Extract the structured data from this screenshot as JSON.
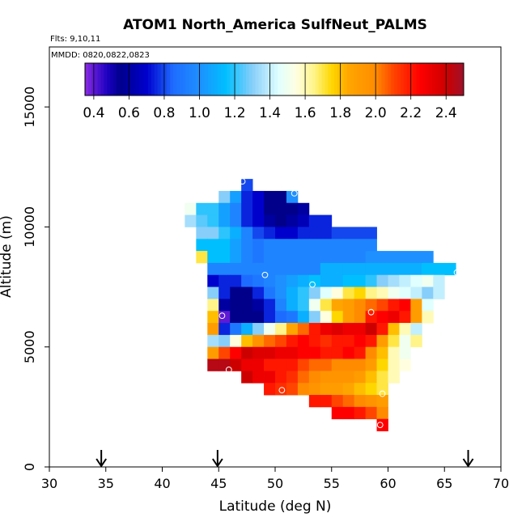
{
  "chart_data": {
    "type": "heatmap",
    "title": "ATOM1 North_America SulfNeut_PALMS",
    "flights_note": "Flts: 9,10,11",
    "dates_note": "MMDD: 0820,0822,0823",
    "xlabel": "Latitude (deg N)",
    "ylabel": "Altitude (m)",
    "xlim": [
      30,
      70
    ],
    "ylim": [
      0,
      17500
    ],
    "x_ticks": [
      "30",
      "35",
      "40",
      "45",
      "50",
      "55",
      "60",
      "65",
      "70"
    ],
    "y_ticks": [
      "0",
      "5000",
      "10000",
      "15000"
    ],
    "colorbar": {
      "range": [
        0.35,
        2.5
      ],
      "tick_labels": [
        "0.4",
        "0.6",
        "0.8",
        "1.0",
        "1.2",
        "1.4",
        "1.6",
        "1.8",
        "2.0",
        "2.2",
        "2.4"
      ],
      "stops": [
        [
          0.35,
          "#8a2be2"
        ],
        [
          0.48,
          "#1a00c0"
        ],
        [
          0.55,
          "#00008b"
        ],
        [
          0.7,
          "#0000cd"
        ],
        [
          0.85,
          "#1e6cff"
        ],
        [
          1.0,
          "#1e90ff"
        ],
        [
          1.15,
          "#00bfff"
        ],
        [
          1.3,
          "#87cefa"
        ],
        [
          1.45,
          "#e0ffff"
        ],
        [
          1.55,
          "#ffffe0"
        ],
        [
          1.65,
          "#fff48a"
        ],
        [
          1.75,
          "#ffd700"
        ],
        [
          1.85,
          "#ffa500"
        ],
        [
          2.0,
          "#ff8c00"
        ],
        [
          2.1,
          "#ff4500"
        ],
        [
          2.25,
          "#ff0000"
        ],
        [
          2.4,
          "#cd0000"
        ],
        [
          2.5,
          "#a0102a"
        ]
      ]
    },
    "cell_size": {
      "lat": 1.0,
      "alt_m": 500
    },
    "rows": [
      {
        "alt": 11750,
        "start": 47,
        "values": [
          0.8
        ]
      },
      {
        "alt": 11250,
        "start": 45,
        "values": [
          1.3,
          1.05,
          0.75,
          0.7,
          0.55,
          0.55,
          1.0
        ]
      },
      {
        "alt": 10750,
        "start": 42,
        "values": [
          1.5,
          1.2,
          1.2,
          1.05,
          0.95,
          0.75,
          0.7,
          0.55,
          0.55,
          0.55,
          0.6
        ]
      },
      {
        "alt": 10250,
        "start": 42,
        "values": [
          1.35,
          1.25,
          1.2,
          1.05,
          0.95,
          0.75,
          0.7,
          0.6,
          0.55,
          0.6,
          0.65,
          0.75,
          0.75
        ]
      },
      {
        "alt": 9750,
        "start": 43,
        "values": [
          1.3,
          1.3,
          1.2,
          1.1,
          0.95,
          0.8,
          0.75,
          0.7,
          0.7,
          0.75,
          0.75,
          0.75,
          0.8,
          0.8,
          0.8,
          0.8
        ]
      },
      {
        "alt": 9250,
        "start": 43,
        "values": [
          1.15,
          1.15,
          1.15,
          1.05,
          0.95,
          0.9,
          0.95,
          0.95,
          0.95,
          0.95,
          0.95,
          0.95,
          0.95,
          0.95,
          0.95,
          0.95
        ]
      },
      {
        "alt": 8750,
        "start": 43,
        "values": [
          1.7,
          1.15,
          1.15,
          1.05,
          0.95,
          0.9,
          0.95,
          0.95,
          0.95,
          0.95,
          0.95,
          0.95,
          0.95,
          0.95,
          0.95,
          1.0,
          1.0,
          1.0,
          1.0,
          1.0,
          1.0
        ]
      },
      {
        "alt": 8250,
        "start": 44,
        "values": [
          0.95,
          0.95,
          0.95,
          0.95,
          0.95,
          0.95,
          0.95,
          0.95,
          0.95,
          0.95,
          1.1,
          1.1,
          1.1,
          1.1,
          1.1,
          1.1,
          1.1,
          1.1,
          1.1,
          1.15,
          1.15,
          1.15
        ]
      },
      {
        "alt": 7750,
        "start": 44,
        "values": [
          0.7,
          0.75,
          0.75,
          0.85,
          0.9,
          0.95,
          1.0,
          1.05,
          1.1,
          1.15,
          1.1,
          1.1,
          1.15,
          1.15,
          1.2,
          1.3,
          1.35,
          1.4,
          1.45,
          1.5,
          1.4
        ]
      },
      {
        "alt": 7250,
        "start": 44,
        "values": [
          1.3,
          0.75,
          0.55,
          0.55,
          0.75,
          0.9,
          1.0,
          1.1,
          1.2,
          1.3,
          1.45,
          1.55,
          1.7,
          1.75,
          1.65,
          1.6,
          1.5,
          1.45,
          1.4,
          1.3,
          1.4
        ]
      },
      {
        "alt": 6750,
        "start": 44,
        "values": [
          1.65,
          0.6,
          0.55,
          0.55,
          0.6,
          0.75,
          0.95,
          1.1,
          1.2,
          1.5,
          1.7,
          1.85,
          1.9,
          2.0,
          2.05,
          2.1,
          2.2,
          2.25,
          1.9,
          1.45
        ]
      },
      {
        "alt": 6250,
        "start": 44,
        "values": [
          1.8,
          0.4,
          0.55,
          0.55,
          0.55,
          0.75,
          0.85,
          0.9,
          1.1,
          1.3,
          1.55,
          1.75,
          1.9,
          2.0,
          2.2,
          2.25,
          2.3,
          2.2,
          1.9,
          1.6
        ]
      },
      {
        "alt": 5750,
        "start": 44,
        "values": [
          1.9,
          0.75,
          0.9,
          1.1,
          1.3,
          1.5,
          1.65,
          1.85,
          2.05,
          2.2,
          2.3,
          2.35,
          2.3,
          2.3,
          2.4,
          2.2,
          1.8,
          1.6,
          1.4
        ]
      },
      {
        "alt": 5250,
        "start": 44,
        "values": [
          1.35,
          1.3,
          1.55,
          1.8,
          1.95,
          2.05,
          2.1,
          2.2,
          2.25,
          2.2,
          2.15,
          2.2,
          2.2,
          2.25,
          2.2,
          1.9,
          1.7,
          1.5,
          1.65
        ]
      },
      {
        "alt": 4750,
        "start": 44,
        "values": [
          1.9,
          2.1,
          2.25,
          2.4,
          2.35,
          2.35,
          2.3,
          2.3,
          2.25,
          2.25,
          2.2,
          2.2,
          2.25,
          2.2,
          2.0,
          1.8,
          1.6,
          1.5
        ]
      },
      {
        "alt": 4250,
        "start": 44,
        "values": [
          2.45,
          2.45,
          2.4,
          2.3,
          2.3,
          2.2,
          2.2,
          2.2,
          2.1,
          2.05,
          2.05,
          2.0,
          2.0,
          2.0,
          1.9,
          1.75,
          1.6,
          1.55
        ]
      },
      {
        "alt": 3750,
        "start": 47,
        "values": [
          2.4,
          2.3,
          2.3,
          2.2,
          2.15,
          2.05,
          2.0,
          1.95,
          1.95,
          1.95,
          1.9,
          1.8,
          1.7,
          1.6
        ]
      },
      {
        "alt": 3250,
        "start": 49,
        "values": [
          2.2,
          2.15,
          2.1,
          2.0,
          1.95,
          1.9,
          1.9,
          1.85,
          1.8,
          1.75,
          1.7
        ]
      },
      {
        "alt": 2750,
        "start": 53,
        "values": [
          2.2,
          2.2,
          2.1,
          2.05,
          2.0,
          1.95,
          1.9
        ]
      },
      {
        "alt": 2250,
        "start": 55,
        "values": [
          2.25,
          2.25,
          2.2,
          2.1,
          2.0
        ]
      },
      {
        "alt": 1750,
        "start": 59,
        "values": [
          2.25
        ]
      }
    ],
    "markers": [
      {
        "lat": 47.1,
        "alt": 11900
      },
      {
        "lat": 51.7,
        "alt": 11400
      },
      {
        "lat": 49.1,
        "alt": 8000
      },
      {
        "lat": 53.3,
        "alt": 7600
      },
      {
        "lat": 66.1,
        "alt": 8100
      },
      {
        "lat": 45.3,
        "alt": 6300
      },
      {
        "lat": 58.5,
        "alt": 6450
      },
      {
        "lat": 45.9,
        "alt": 4050
      },
      {
        "lat": 50.6,
        "alt": 3200
      },
      {
        "lat": 59.5,
        "alt": 3050
      },
      {
        "lat": 59.3,
        "alt": 1750
      }
    ],
    "arrow_latitudes": [
      34.6,
      44.9,
      67.1
    ]
  }
}
